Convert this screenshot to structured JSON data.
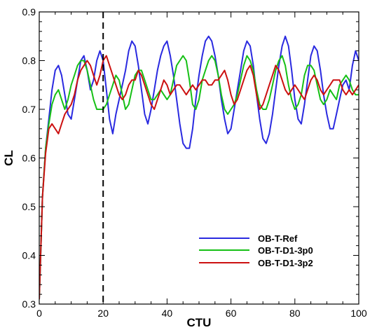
{
  "chart_data": {
    "type": "line",
    "title": "",
    "xlabel": "CTU",
    "ylabel": "CL",
    "xlim": [
      0,
      100
    ],
    "ylim": [
      0.3,
      0.9
    ],
    "x_ticks": [
      0,
      20,
      40,
      60,
      80,
      100
    ],
    "y_ticks": [
      0.3,
      0.4,
      0.5,
      0.6,
      0.7,
      0.8,
      0.9
    ],
    "x_tick_labels": [
      "0",
      "20",
      "40",
      "60",
      "80",
      "100"
    ],
    "y_tick_labels": [
      "0.3",
      "0.4",
      "0.5",
      "0.6",
      "0.7",
      "0.8",
      "0.9"
    ],
    "grid": false,
    "legend_position": "lower-right",
    "vline": {
      "x": 20,
      "style": "dashed",
      "color": "#000000"
    },
    "series": [
      {
        "name": "OB-T-Ref",
        "color": "#2a2ae0",
        "x": [
          0,
          1,
          2,
          3,
          4,
          5,
          6,
          7,
          8,
          9,
          10,
          11,
          12,
          13,
          14,
          15,
          16,
          17,
          18,
          19,
          20,
          21,
          22,
          23,
          24,
          25,
          26,
          27,
          28,
          29,
          30,
          31,
          32,
          33,
          34,
          35,
          36,
          37,
          38,
          39,
          40,
          41,
          42,
          43,
          44,
          45,
          46,
          47,
          48,
          49,
          50,
          51,
          52,
          53,
          54,
          55,
          56,
          57,
          58,
          59,
          60,
          61,
          62,
          63,
          64,
          65,
          66,
          67,
          68,
          69,
          70,
          71,
          72,
          73,
          74,
          75,
          76,
          77,
          78,
          79,
          80,
          81,
          82,
          83,
          84,
          85,
          86,
          87,
          88,
          89,
          90,
          91,
          92,
          93,
          94,
          95,
          96,
          97,
          98,
          99,
          100
        ],
        "y": [
          0.31,
          0.52,
          0.62,
          0.68,
          0.74,
          0.78,
          0.79,
          0.77,
          0.73,
          0.69,
          0.68,
          0.72,
          0.76,
          0.8,
          0.81,
          0.78,
          0.74,
          0.76,
          0.8,
          0.82,
          0.8,
          0.74,
          0.68,
          0.65,
          0.69,
          0.72,
          0.75,
          0.78,
          0.82,
          0.84,
          0.83,
          0.79,
          0.74,
          0.69,
          0.67,
          0.7,
          0.74,
          0.78,
          0.81,
          0.83,
          0.84,
          0.81,
          0.77,
          0.72,
          0.67,
          0.63,
          0.62,
          0.62,
          0.66,
          0.72,
          0.77,
          0.81,
          0.84,
          0.85,
          0.84,
          0.81,
          0.77,
          0.72,
          0.68,
          0.65,
          0.66,
          0.7,
          0.74,
          0.78,
          0.82,
          0.84,
          0.83,
          0.79,
          0.73,
          0.68,
          0.64,
          0.63,
          0.65,
          0.69,
          0.74,
          0.79,
          0.83,
          0.85,
          0.83,
          0.78,
          0.72,
          0.68,
          0.67,
          0.71,
          0.76,
          0.81,
          0.83,
          0.82,
          0.78,
          0.73,
          0.69,
          0.66,
          0.66,
          0.69,
          0.72,
          0.75,
          0.76,
          0.74,
          0.79,
          0.82,
          0.8
        ]
      },
      {
        "name": "OB-T-D1-3p0",
        "color": "#16c016",
        "x": [
          0,
          1,
          2,
          3,
          4,
          5,
          6,
          7,
          8,
          9,
          10,
          11,
          12,
          13,
          14,
          15,
          16,
          17,
          18,
          19,
          20,
          21,
          22,
          23,
          24,
          25,
          26,
          27,
          28,
          29,
          30,
          31,
          32,
          33,
          34,
          35,
          36,
          37,
          38,
          39,
          40,
          41,
          42,
          43,
          44,
          45,
          46,
          47,
          48,
          49,
          50,
          51,
          52,
          53,
          54,
          55,
          56,
          57,
          58,
          59,
          60,
          61,
          62,
          63,
          64,
          65,
          66,
          67,
          68,
          69,
          70,
          71,
          72,
          73,
          74,
          75,
          76,
          77,
          78,
          79,
          80,
          81,
          82,
          83,
          84,
          85,
          86,
          87,
          88,
          89,
          90,
          91,
          92,
          93,
          94,
          95,
          96,
          97,
          98,
          99,
          100
        ],
        "y": [
          0.31,
          0.52,
          0.62,
          0.67,
          0.71,
          0.73,
          0.74,
          0.72,
          0.7,
          0.72,
          0.75,
          0.77,
          0.79,
          0.8,
          0.8,
          0.78,
          0.75,
          0.72,
          0.7,
          0.7,
          0.7,
          0.71,
          0.73,
          0.75,
          0.77,
          0.76,
          0.73,
          0.7,
          0.71,
          0.74,
          0.77,
          0.78,
          0.78,
          0.76,
          0.74,
          0.72,
          0.72,
          0.73,
          0.74,
          0.73,
          0.72,
          0.73,
          0.76,
          0.79,
          0.8,
          0.81,
          0.8,
          0.76,
          0.71,
          0.7,
          0.72,
          0.76,
          0.78,
          0.8,
          0.81,
          0.8,
          0.77,
          0.73,
          0.7,
          0.69,
          0.7,
          0.71,
          0.73,
          0.76,
          0.79,
          0.81,
          0.8,
          0.78,
          0.74,
          0.71,
          0.7,
          0.7,
          0.72,
          0.75,
          0.78,
          0.8,
          0.81,
          0.79,
          0.75,
          0.72,
          0.7,
          0.71,
          0.73,
          0.77,
          0.79,
          0.79,
          0.78,
          0.75,
          0.72,
          0.71,
          0.72,
          0.74,
          0.73,
          0.72,
          0.75,
          0.76,
          0.77,
          0.76,
          0.74,
          0.73,
          0.73
        ]
      },
      {
        "name": "OB-T-D1-3p2",
        "color": "#cc1111",
        "x": [
          0,
          1,
          2,
          3,
          4,
          5,
          6,
          7,
          8,
          9,
          10,
          11,
          12,
          13,
          14,
          15,
          16,
          17,
          18,
          19,
          20,
          21,
          22,
          23,
          24,
          25,
          26,
          27,
          28,
          29,
          30,
          31,
          32,
          33,
          34,
          35,
          36,
          37,
          38,
          39,
          40,
          41,
          42,
          43,
          44,
          45,
          46,
          47,
          48,
          49,
          50,
          51,
          52,
          53,
          54,
          55,
          56,
          57,
          58,
          59,
          60,
          61,
          62,
          63,
          64,
          65,
          66,
          67,
          68,
          69,
          70,
          71,
          72,
          73,
          74,
          75,
          76,
          77,
          78,
          79,
          80,
          81,
          82,
          83,
          84,
          85,
          86,
          87,
          88,
          89,
          90,
          91,
          92,
          93,
          94,
          95,
          96,
          97,
          98,
          99,
          100
        ],
        "y": [
          0.31,
          0.52,
          0.61,
          0.66,
          0.67,
          0.66,
          0.65,
          0.67,
          0.69,
          0.7,
          0.71,
          0.73,
          0.76,
          0.78,
          0.79,
          0.8,
          0.79,
          0.77,
          0.75,
          0.77,
          0.8,
          0.81,
          0.79,
          0.77,
          0.75,
          0.73,
          0.72,
          0.73,
          0.75,
          0.76,
          0.76,
          0.78,
          0.77,
          0.75,
          0.73,
          0.71,
          0.7,
          0.72,
          0.74,
          0.76,
          0.75,
          0.73,
          0.74,
          0.75,
          0.75,
          0.74,
          0.73,
          0.74,
          0.75,
          0.74,
          0.75,
          0.76,
          0.76,
          0.75,
          0.75,
          0.76,
          0.76,
          0.77,
          0.78,
          0.76,
          0.73,
          0.71,
          0.72,
          0.74,
          0.76,
          0.78,
          0.79,
          0.77,
          0.73,
          0.7,
          0.71,
          0.73,
          0.75,
          0.77,
          0.79,
          0.78,
          0.76,
          0.74,
          0.73,
          0.74,
          0.75,
          0.74,
          0.73,
          0.72,
          0.74,
          0.76,
          0.77,
          0.76,
          0.74,
          0.73,
          0.74,
          0.75,
          0.76,
          0.76,
          0.76,
          0.74,
          0.73,
          0.74,
          0.73,
          0.74,
          0.75
        ]
      }
    ]
  }
}
